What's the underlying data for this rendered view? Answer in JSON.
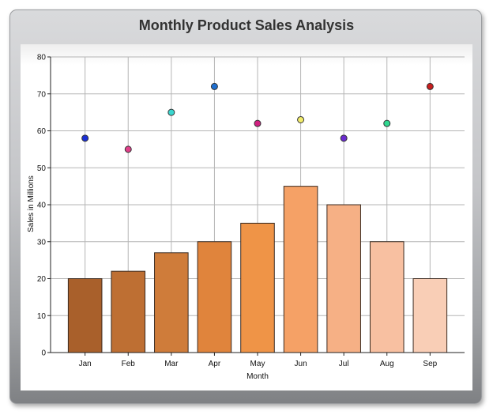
{
  "chart_data": {
    "type": "bar",
    "title": "Monthly Product Sales Analysis",
    "xlabel": "Month",
    "ylabel": "Sales in Millions",
    "ylim": [
      0,
      80
    ],
    "yticks": [
      0,
      10,
      20,
      30,
      40,
      50,
      60,
      70,
      80
    ],
    "grid": true,
    "categories": [
      "Jan",
      "Feb",
      "Mar",
      "Apr",
      "May",
      "Jun",
      "Jul",
      "Aug",
      "Sep"
    ],
    "series": [
      {
        "type": "bar",
        "values": [
          20,
          22,
          27,
          30,
          35,
          45,
          40,
          30,
          20
        ],
        "colors": [
          "#a9602b",
          "#be6f33",
          "#cf7c3a",
          "#e0843c",
          "#ef9447",
          "#f5a166",
          "#f6b085",
          "#f8c0a1",
          "#f9ceb6"
        ]
      },
      {
        "type": "scatter",
        "values": [
          58,
          55,
          65,
          72,
          62,
          63,
          58,
          62,
          72
        ],
        "colors": [
          "#1a2fd6",
          "#e0408a",
          "#3ad6cf",
          "#1e6fd0",
          "#d02080",
          "#f2ec6a",
          "#6a2ad0",
          "#30d890",
          "#c81e1e"
        ]
      }
    ]
  }
}
